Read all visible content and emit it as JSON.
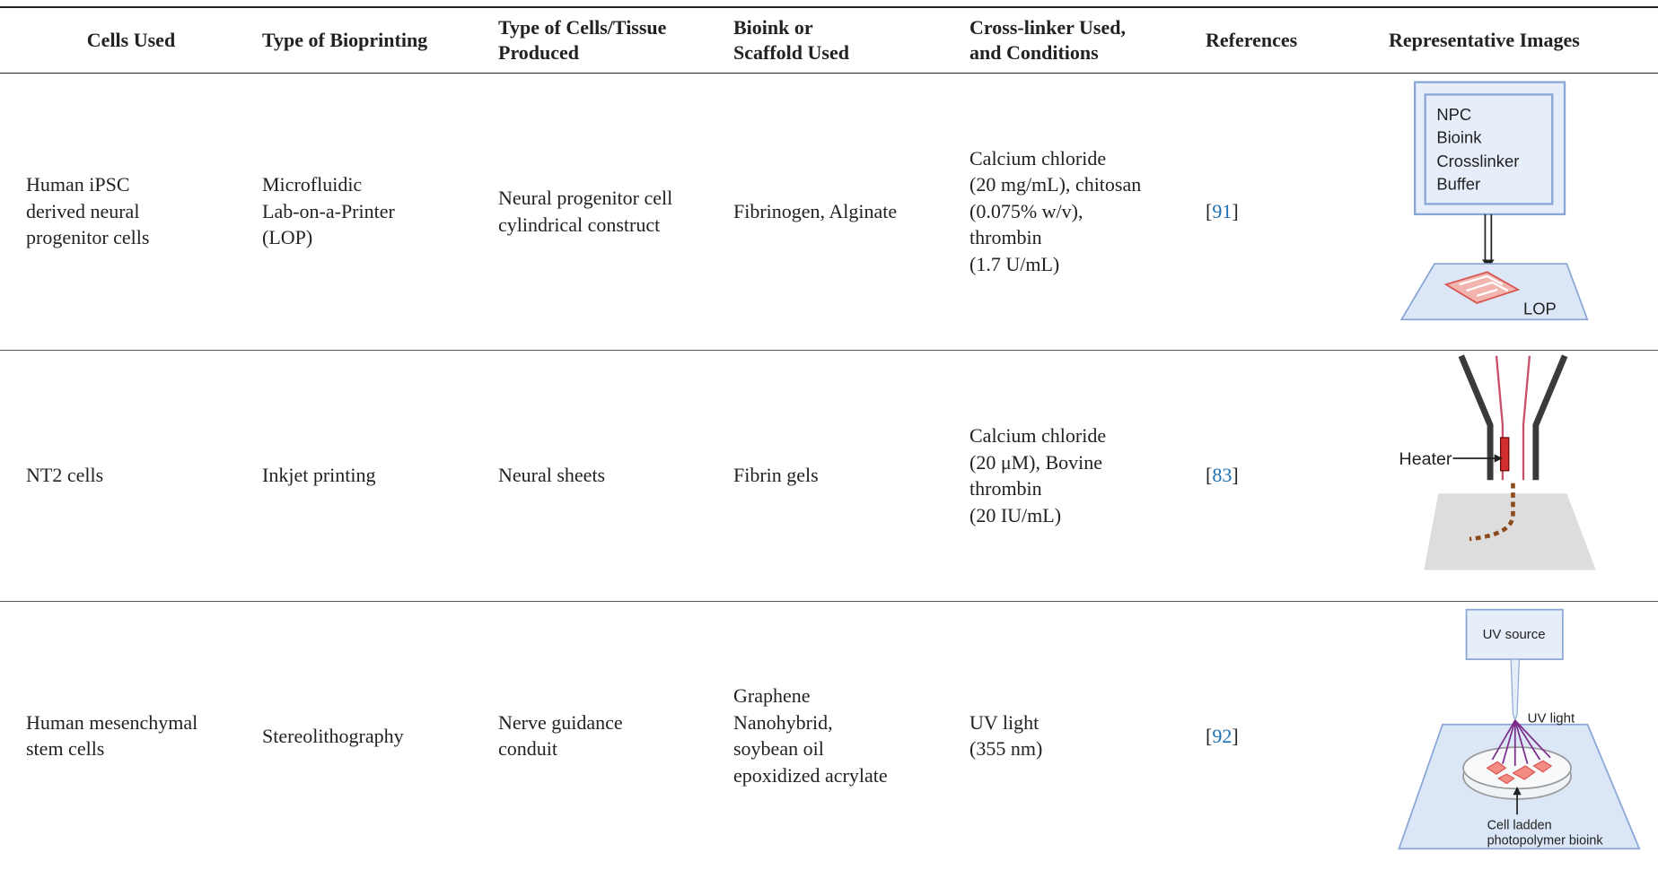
{
  "table": {
    "columns": [
      [
        "Cells Used"
      ],
      [
        "Type of Bioprinting"
      ],
      [
        "Type of Cells/Tissue",
        "Produced"
      ],
      [
        "Bioink or",
        "Scaffold Used"
      ],
      [
        "Cross-linker Used,",
        "and Conditions"
      ],
      [
        "References"
      ],
      [
        "Representative Images"
      ]
    ],
    "rows": [
      {
        "cells": [
          [
            "Human iPSC",
            "derived neural",
            "progenitor cells"
          ],
          [
            "Microfluidic",
            "Lab-on-a-Printer",
            "(LOP)"
          ],
          [
            "Neural progenitor cell",
            "cylindrical construct"
          ],
          [
            "Fibrinogen, Alginate"
          ],
          [
            "Calcium chloride",
            "(20 mg/mL), chitosan",
            "(0.075% w/v),",
            "thrombin",
            "(1.7 U/mL)"
          ]
        ],
        "reference": [
          "[",
          "91",
          "]"
        ],
        "image_labels": [
          "NPC",
          "Bioink",
          "Crosslinker",
          "Buffer",
          "LOP"
        ]
      },
      {
        "cells": [
          [
            "NT2 cells"
          ],
          [
            "Inkjet printing"
          ],
          [
            "Neural sheets"
          ],
          [
            "Fibrin gels"
          ],
          [
            "Calcium chloride",
            "(20 μM), Bovine",
            "thrombin",
            "(20 IU/mL)"
          ]
        ],
        "reference": [
          "[",
          "83",
          "]"
        ],
        "image_labels": [
          "Heater"
        ]
      },
      {
        "cells": [
          [
            "Human mesenchymal",
            "stem cells"
          ],
          [
            "Stereolithography"
          ],
          [
            "Nerve guidance",
            "conduit"
          ],
          [
            "Graphene",
            "Nanohybrid,",
            "soybean oil",
            "epoxidized acrylate"
          ],
          [
            "UV light",
            "(355 nm)"
          ]
        ],
        "reference": [
          "[",
          "92",
          "]"
        ],
        "image_labels": [
          "UV source",
          "UV light",
          "Cell ladden",
          "photopolymer bioink"
        ]
      }
    ]
  }
}
